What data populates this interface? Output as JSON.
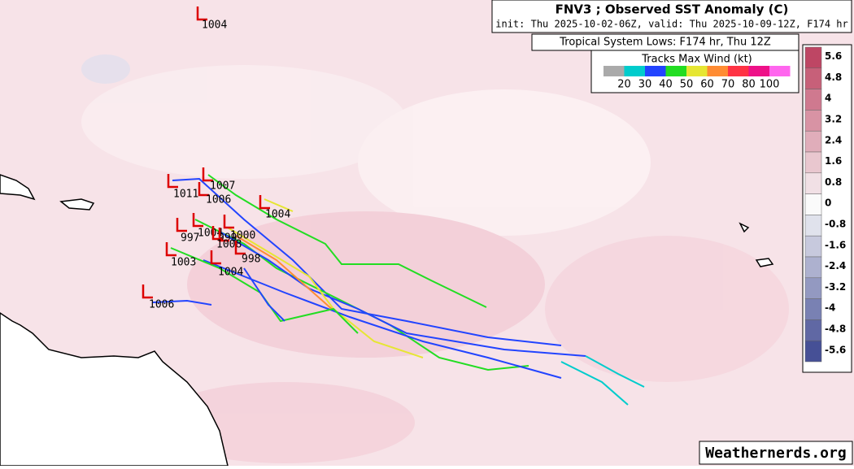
{
  "header": {
    "title": "FNV3 ; Observed SST Anomaly (C)",
    "subtitle": "init: Thu 2025-10-02-06Z, valid: Thu 2025-10-09-12Z, F174 hr",
    "lows_title": "Tropical System Lows: F174 hr, Thu 12Z"
  },
  "wind_legend": {
    "title": "Tracks Max Wind (kt)",
    "labels": [
      "20",
      "30",
      "40",
      "50",
      "60",
      "70",
      "80",
      "100"
    ],
    "colors": [
      "#aaaaaa",
      "#00cccc",
      "#2244ff",
      "#22dd22",
      "#e6e633",
      "#ff8c33",
      "#ff3344",
      "#ee1188",
      "#ff66ee"
    ]
  },
  "colorbar": {
    "labels": [
      "5.6",
      "4.8",
      "4",
      "3.2",
      "2.4",
      "1.6",
      "0.8",
      "0",
      "-0.8",
      "-1.6",
      "-2.4",
      "-3.2",
      "-4",
      "-4.8",
      "-5.6"
    ]
  },
  "lows": [
    "1004",
    "1011",
    "1007",
    "1006",
    "1004",
    "997",
    "1004",
    "1000",
    "999",
    "1008",
    "998",
    "1003",
    "1004",
    "1006"
  ],
  "footer": {
    "watermark": "Weathernerds.org"
  }
}
